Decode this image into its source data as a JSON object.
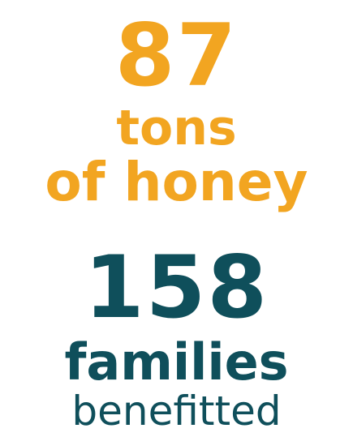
{
  "honey": {
    "number": "87",
    "line1": "tons",
    "line2": "of honey"
  },
  "families": {
    "number": "158",
    "line1": "families",
    "line2": "benefitted"
  },
  "colors": {
    "orange": "#f2a521",
    "teal": "#0f4f5b"
  }
}
